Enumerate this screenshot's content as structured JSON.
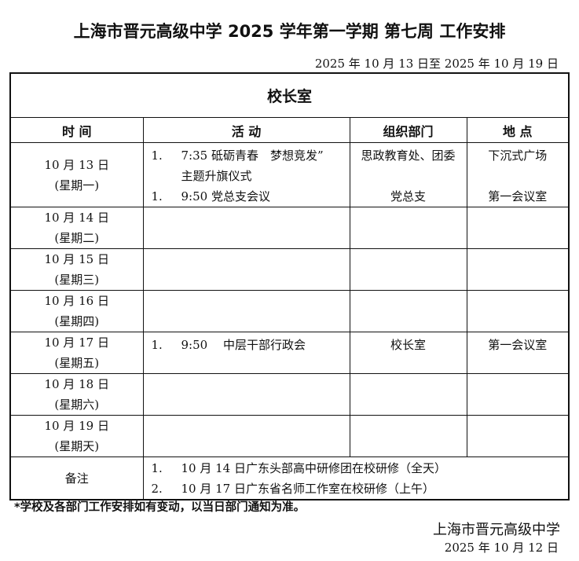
{
  "title": "上海市晋元高级中学 2025 学年第一学期 第七周 工作安排",
  "date_range": "2025 年 10 月 13 日至 2025 年 10 月 19 日",
  "office": "校长室",
  "headers": [
    "时 间",
    "活 动",
    "组织部门",
    "地 点"
  ],
  "rows": [
    {
      "date": "10 月 13 日",
      "weekday": "(星期一)",
      "items": [
        {
          "num": "1.",
          "text": "7:35 砥砺青春　梦想竞发”",
          "cont": "主题升旗仪式",
          "dept": "思政教育处、团委",
          "place": "下沉式广场"
        },
        {
          "num": "1.",
          "text": "9:50 党总支会议",
          "dept": "党总支",
          "place": "第一会议室"
        }
      ]
    },
    {
      "date": "10 月 14 日",
      "weekday": "(星期二)",
      "items": []
    },
    {
      "date": "10 月 15 日",
      "weekday": "(星期三)",
      "items": []
    },
    {
      "date": "10 月 16 日",
      "weekday": "(星期四)",
      "items": []
    },
    {
      "date": "10 月 17 日",
      "weekday": "(星期五)",
      "items": [
        {
          "num": "1.",
          "text": "9:50　 中层干部行政会",
          "dept": "校长室",
          "place": "第一会议室"
        }
      ]
    },
    {
      "date": "10 月 18 日",
      "weekday": "(星期六)",
      "items": []
    },
    {
      "date": "10 月 19 日",
      "weekday": "(星期天)",
      "items": []
    }
  ],
  "remarks_label": "备注",
  "remarks": [
    {
      "num": "1.",
      "text": "10 月 14 日广东头部高中研修团在校研修（全天）"
    },
    {
      "num": "2.",
      "text": "10 月 17 日广东省名师工作室在校研修（上午）"
    }
  ],
  "note": "*学校及各部门工作安排如有变动，以当日部门通知为准。",
  "signature": "上海市晋元高级中学",
  "sign_date": "2025 年 10 月 12 日"
}
